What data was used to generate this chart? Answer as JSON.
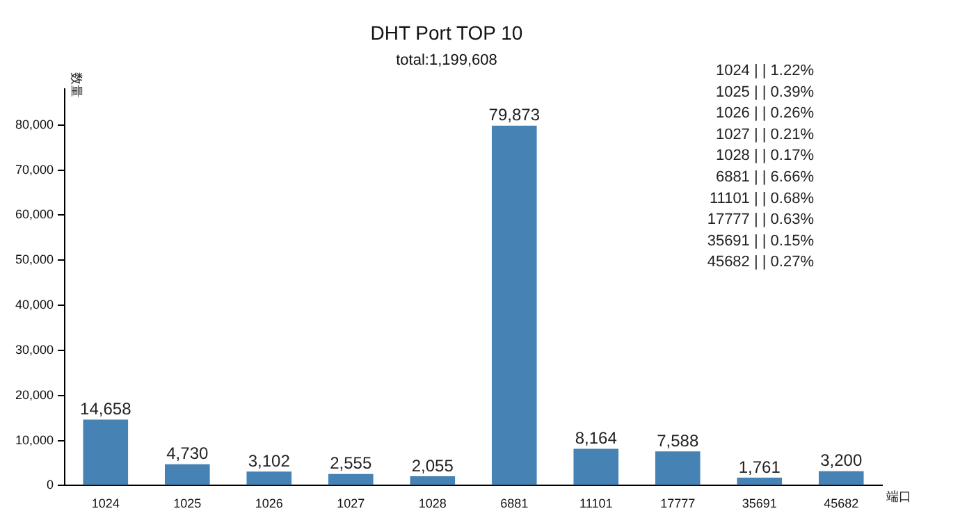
{
  "chart_data": {
    "type": "bar",
    "title": "DHT Port TOP 10",
    "subtitle": "total:1,199,608",
    "xlabel": "端口",
    "ylabel": "数量",
    "categories": [
      "1024",
      "1025",
      "1026",
      "1027",
      "1028",
      "6881",
      "11101",
      "17777",
      "35691",
      "45682"
    ],
    "values": [
      14658,
      4730,
      3102,
      2555,
      2055,
      79873,
      8164,
      7588,
      1761,
      3200
    ],
    "value_labels": [
      "14,658",
      "4,730",
      "3,102",
      "2,555",
      "2,055",
      "79,873",
      "8,164",
      "7,588",
      "1,761",
      "3,200"
    ],
    "color": "#4682b4",
    "ylim": [
      0,
      88000
    ],
    "yticks": [
      0,
      {
        "value": 10000,
        "label": "10,000"
      },
      {
        "value": 20000,
        "label": "20,000"
      },
      {
        "value": 30000,
        "label": "30,000"
      },
      {
        "value": 40000,
        "label": "40,000"
      },
      {
        "value": 50000,
        "label": "50,000"
      },
      {
        "value": 60000,
        "label": "60,000"
      },
      {
        "value": 70000,
        "label": "70,000"
      },
      {
        "value": 80000,
        "label": "80,000"
      }
    ],
    "grid": false,
    "annotations": [
      "1024 | | 1.22%",
      "1025 | | 0.39%",
      "1026 | | 0.26%",
      "1027 | | 0.21%",
      "1028 | | 0.17%",
      "6881 | | 6.66%",
      "11101 | | 0.68%",
      "17777 | | 0.63%",
      "35691 | | 0.15%",
      "45682 | | 0.27%"
    ]
  }
}
